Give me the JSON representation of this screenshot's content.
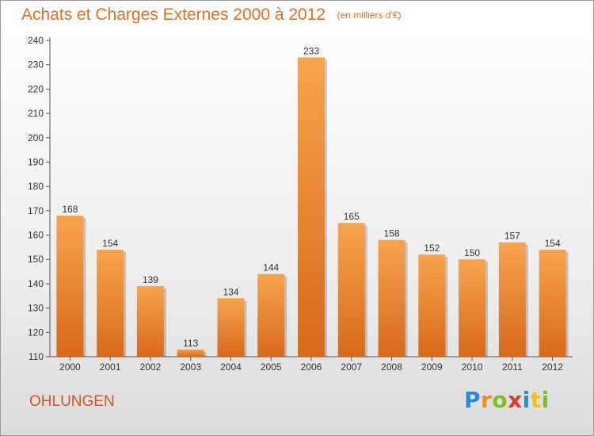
{
  "chart_data": {
    "type": "bar",
    "title": "Achats et Charges Externes 2000 à 2012",
    "subtitle": "(en milliers d'€)",
    "categories": [
      "2000",
      "2001",
      "2002",
      "2003",
      "2004",
      "2005",
      "2006",
      "2007",
      "2008",
      "2009",
      "2010",
      "2011",
      "2012"
    ],
    "values": [
      168,
      154,
      139,
      113,
      134,
      144,
      233,
      165,
      158,
      152,
      150,
      157,
      154
    ],
    "ylim": [
      110,
      240
    ],
    "yticks": [
      110,
      120,
      130,
      140,
      150,
      160,
      170,
      180,
      190,
      200,
      210,
      220,
      230,
      240
    ],
    "grid": false,
    "bar_color": "#f0903a"
  },
  "place_name": "OHLUNGEN",
  "brand": {
    "letters": [
      "P",
      "r",
      "o",
      "x",
      "i",
      "t",
      "i"
    ],
    "colors": [
      "#2a8ad4",
      "#f08a1c",
      "#7cbf2a",
      "#e03a2a",
      "#2a8ad4",
      "#f0c21c",
      "#7cbf2a"
    ]
  }
}
